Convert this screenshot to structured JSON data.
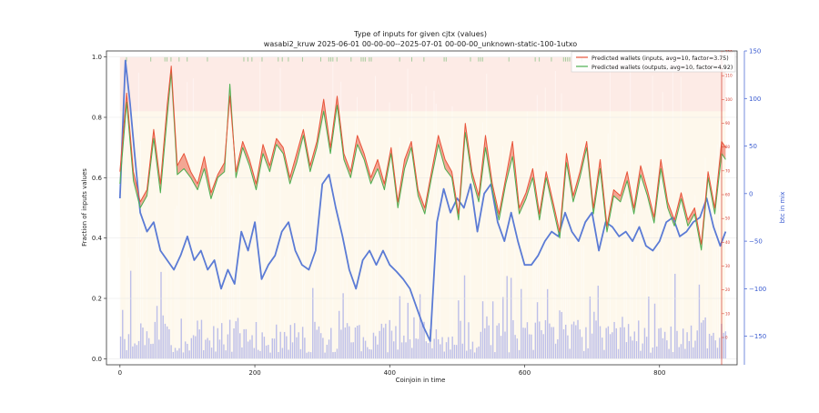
{
  "chart_data": {
    "type": "line",
    "title": "Type of inputs for given cjtx (values)",
    "subtitle": "wasabi2_kruw 2025-06-01 00-00-00--2025-07-01 00-00-00_unknown-static-100-1utxo",
    "xlabel": "Coinjoin in time",
    "ylabel": "Fraction of inputs values",
    "ylabel_right": "btc in mix",
    "xlim": [
      -20,
      915
    ],
    "ylim": [
      -0.02,
      1.02
    ],
    "xticks": [
      "0",
      "200",
      "400",
      "600",
      "800"
    ],
    "yticks": [
      "0.0",
      "0.2",
      "0.4",
      "0.6",
      "0.8",
      "1.0"
    ],
    "y2lim": [
      -180,
      150
    ],
    "y2ticks": [
      "−150",
      "−100",
      "−50",
      "0",
      "50",
      "100",
      "150"
    ],
    "y3ticks": [
      "0",
      "10",
      "20",
      "30",
      "40",
      "50",
      "60",
      "70",
      "80",
      "90",
      "100",
      "110",
      "120"
    ],
    "legend_position": "top-right",
    "series": [
      {
        "name": "Predicted wallets (inputs, avg=10, factor=3.75)",
        "color": "#e8543a",
        "x": [
          0,
          10,
          20,
          30,
          40,
          50,
          60,
          70,
          76,
          85,
          95,
          105,
          115,
          125,
          135,
          145,
          155,
          163,
          172,
          182,
          192,
          202,
          212,
          222,
          232,
          242,
          252,
          262,
          272,
          282,
          292,
          302,
          312,
          322,
          332,
          342,
          352,
          362,
          372,
          382,
          392,
          402,
          412,
          422,
          432,
          442,
          452,
          462,
          472,
          482,
          492,
          502,
          512,
          522,
          532,
          542,
          552,
          562,
          572,
          582,
          592,
          602,
          612,
          622,
          632,
          642,
          652,
          662,
          672,
          682,
          692,
          702,
          712,
          722,
          732,
          742,
          752,
          762,
          772,
          782,
          792,
          802,
          812,
          822,
          832,
          842,
          852,
          862,
          872,
          882,
          892,
          898
        ],
        "values": [
          0.62,
          0.88,
          0.62,
          0.52,
          0.56,
          0.76,
          0.58,
          0.84,
          0.97,
          0.64,
          0.68,
          0.62,
          0.58,
          0.67,
          0.55,
          0.61,
          0.65,
          0.87,
          0.62,
          0.72,
          0.66,
          0.58,
          0.71,
          0.64,
          0.73,
          0.7,
          0.6,
          0.68,
          0.76,
          0.64,
          0.72,
          0.86,
          0.7,
          0.87,
          0.68,
          0.62,
          0.74,
          0.68,
          0.6,
          0.66,
          0.58,
          0.7,
          0.52,
          0.66,
          0.72,
          0.56,
          0.5,
          0.62,
          0.74,
          0.66,
          0.62,
          0.48,
          0.78,
          0.62,
          0.54,
          0.74,
          0.58,
          0.48,
          0.6,
          0.72,
          0.5,
          0.55,
          0.63,
          0.48,
          0.62,
          0.52,
          0.42,
          0.68,
          0.54,
          0.62,
          0.72,
          0.5,
          0.66,
          0.44,
          0.56,
          0.54,
          0.62,
          0.5,
          0.64,
          0.56,
          0.47,
          0.66,
          0.52,
          0.46,
          0.55,
          0.46,
          0.5,
          0.38,
          0.62,
          0.5,
          0.72,
          0.7
        ]
      },
      {
        "name": "Predicted wallets (outputs, avg=10, factor=4.92)",
        "color": "#4caf50",
        "x": [
          0,
          10,
          20,
          30,
          40,
          50,
          60,
          70,
          76,
          85,
          95,
          105,
          115,
          125,
          135,
          145,
          155,
          163,
          172,
          182,
          192,
          202,
          212,
          222,
          232,
          242,
          252,
          262,
          272,
          282,
          292,
          302,
          312,
          322,
          332,
          342,
          352,
          362,
          372,
          382,
          392,
          402,
          412,
          422,
          432,
          442,
          452,
          462,
          472,
          482,
          492,
          502,
          512,
          522,
          532,
          542,
          552,
          562,
          572,
          582,
          592,
          602,
          612,
          622,
          632,
          642,
          652,
          662,
          672,
          682,
          692,
          702,
          712,
          722,
          732,
          742,
          752,
          762,
          772,
          782,
          792,
          802,
          812,
          822,
          832,
          842,
          852,
          862,
          872,
          882,
          892,
          898
        ],
        "values": [
          0.58,
          0.85,
          0.59,
          0.5,
          0.54,
          0.73,
          0.55,
          0.8,
          0.95,
          0.61,
          0.63,
          0.6,
          0.56,
          0.63,
          0.53,
          0.6,
          0.62,
          0.91,
          0.6,
          0.7,
          0.64,
          0.56,
          0.68,
          0.62,
          0.71,
          0.68,
          0.58,
          0.65,
          0.74,
          0.62,
          0.7,
          0.82,
          0.68,
          0.84,
          0.66,
          0.6,
          0.71,
          0.66,
          0.58,
          0.63,
          0.56,
          0.68,
          0.5,
          0.63,
          0.7,
          0.54,
          0.48,
          0.6,
          0.71,
          0.63,
          0.6,
          0.46,
          0.75,
          0.6,
          0.52,
          0.7,
          0.56,
          0.46,
          0.58,
          0.67,
          0.48,
          0.53,
          0.6,
          0.46,
          0.6,
          0.5,
          0.4,
          0.65,
          0.52,
          0.6,
          0.7,
          0.48,
          0.63,
          0.42,
          0.54,
          0.52,
          0.59,
          0.48,
          0.61,
          0.54,
          0.45,
          0.63,
          0.5,
          0.44,
          0.53,
          0.44,
          0.48,
          0.36,
          0.6,
          0.48,
          0.68,
          0.66
        ]
      },
      {
        "name": "btc in mix",
        "color": "#5b7bd5",
        "axis": "right",
        "x": [
          0,
          8,
          15,
          22,
          30,
          40,
          50,
          60,
          70,
          80,
          90,
          100,
          110,
          120,
          130,
          140,
          150,
          160,
          170,
          180,
          190,
          200,
          210,
          220,
          230,
          240,
          250,
          260,
          270,
          280,
          290,
          300,
          310,
          320,
          330,
          340,
          350,
          360,
          370,
          380,
          390,
          400,
          410,
          420,
          430,
          440,
          450,
          460,
          470,
          480,
          490,
          500,
          510,
          520,
          530,
          540,
          550,
          560,
          570,
          580,
          590,
          600,
          610,
          620,
          630,
          640,
          650,
          660,
          670,
          680,
          690,
          700,
          710,
          720,
          730,
          740,
          750,
          760,
          770,
          780,
          790,
          800,
          810,
          820,
          830,
          840,
          850,
          860,
          870,
          880,
          890,
          898
        ],
        "values": [
          -5,
          140,
          95,
          40,
          -20,
          -40,
          -30,
          -60,
          -70,
          -80,
          -65,
          -45,
          -70,
          -60,
          -80,
          -70,
          -100,
          -80,
          -95,
          -40,
          -60,
          -30,
          -90,
          -75,
          -65,
          -40,
          -30,
          -60,
          -75,
          -80,
          -60,
          10,
          20,
          -15,
          -45,
          -80,
          -100,
          -70,
          -60,
          -75,
          -60,
          -75,
          -82,
          -90,
          -100,
          -120,
          -140,
          -155,
          -30,
          5,
          -20,
          -5,
          -15,
          10,
          -40,
          0,
          10,
          -30,
          -50,
          -20,
          -50,
          -75,
          -75,
          -65,
          -50,
          -40,
          -45,
          -20,
          -40,
          -50,
          -30,
          -20,
          -60,
          -30,
          -35,
          -45,
          -40,
          -50,
          -35,
          -55,
          -60,
          -50,
          -30,
          -25,
          -45,
          -40,
          -30,
          -25,
          -5,
          -35,
          -55,
          -40
        ]
      }
    ]
  }
}
